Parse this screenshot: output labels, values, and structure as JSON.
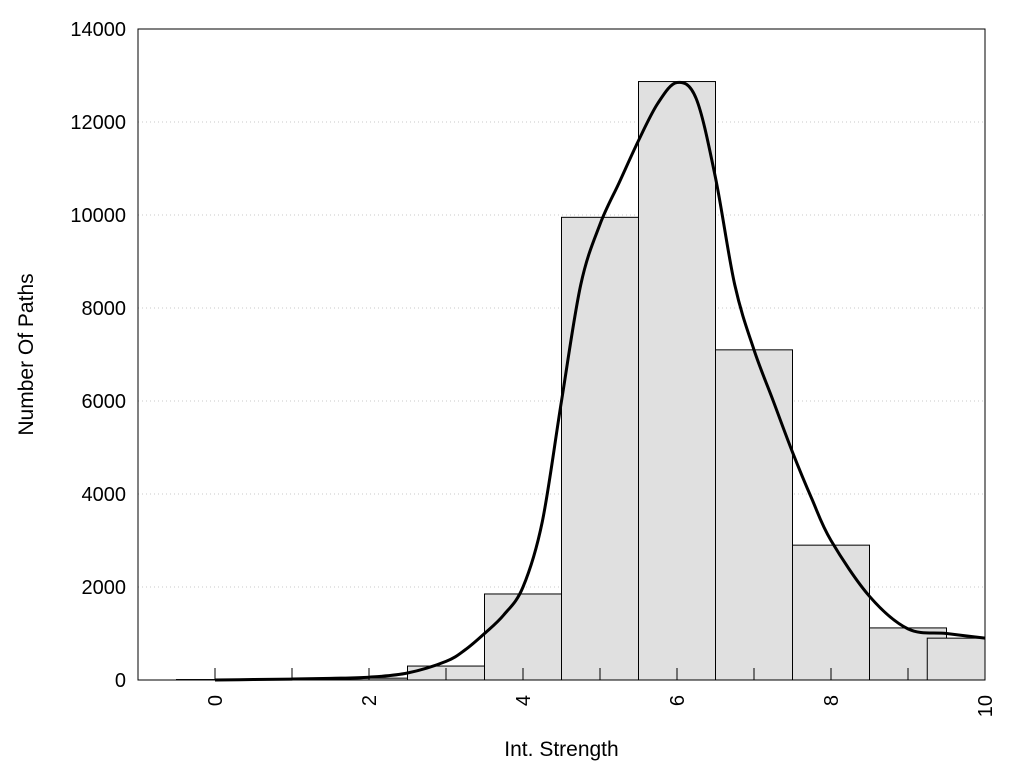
{
  "chart_data": {
    "type": "bar",
    "title": "",
    "xlabel": "Int. Strength",
    "ylabel": "Number Of Paths",
    "xlim": [
      -1,
      10
    ],
    "ylim": [
      0,
      14000
    ],
    "x_ticks": [
      "0",
      "2",
      "4",
      "6",
      "8",
      "10"
    ],
    "y_ticks": [
      "0",
      "2000",
      "4000",
      "6000",
      "8000",
      "10000",
      "12000",
      "14000"
    ],
    "grid": "horizontal dotted",
    "legend": "none",
    "bar_fill": "#e0e0e0",
    "bar_edge": "#000000",
    "bins": [
      {
        "x": 0,
        "value": 10
      },
      {
        "x": 1,
        "value": 20
      },
      {
        "x": 2,
        "value": 40
      },
      {
        "x": 3,
        "value": 300
      },
      {
        "x": 4,
        "value": 1850
      },
      {
        "x": 5,
        "value": 9950
      },
      {
        "x": 6,
        "value": 12870
      },
      {
        "x": 7,
        "value": 7100
      },
      {
        "x": 8,
        "value": 2900
      },
      {
        "x": 9,
        "value": 1120
      },
      {
        "x": 9.75,
        "value": 900
      }
    ],
    "curve": {
      "x": [
        0,
        0.5,
        1,
        1.5,
        2,
        2.5,
        3,
        3.25,
        3.5,
        3.75,
        4,
        4.25,
        4.5,
        4.75,
        5,
        5.25,
        5.5,
        5.75,
        6,
        6.25,
        6.5,
        6.75,
        7,
        7.25,
        7.5,
        7.75,
        8,
        8.5,
        9,
        9.5,
        10
      ],
      "y": [
        0,
        10,
        20,
        35,
        60,
        150,
        400,
        650,
        1000,
        1400,
        2000,
        3400,
        6000,
        8500,
        9800,
        10700,
        11600,
        12400,
        12850,
        12500,
        10800,
        8500,
        7100,
        6000,
        4900,
        3900,
        3000,
        1800,
        1100,
        1000,
        900
      ]
    }
  }
}
